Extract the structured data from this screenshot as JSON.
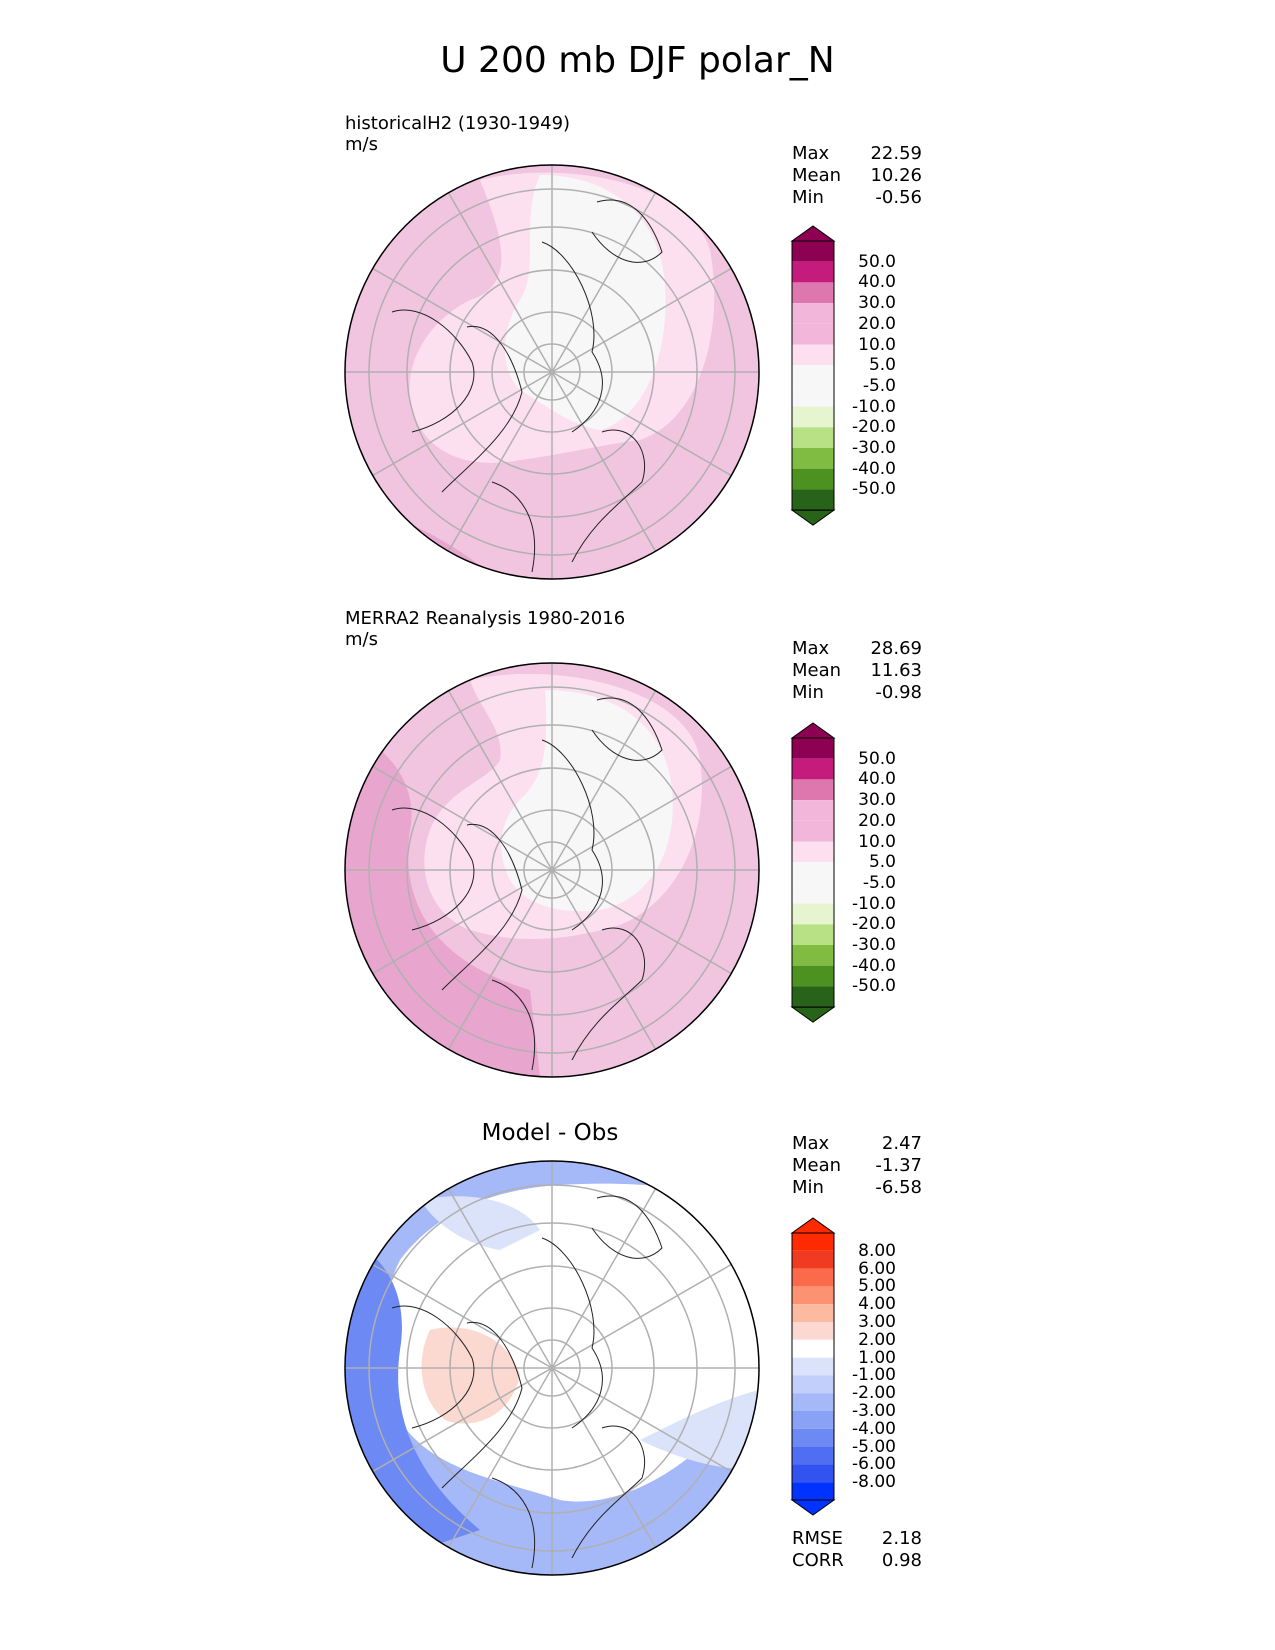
{
  "title": "U 200 mb DJF polar_N",
  "colors": {
    "pink": [
      "#f7f7f7",
      "#fde0ef",
      "#f1b6da",
      "#de77ae",
      "#c51b7d",
      "#8e0152"
    ],
    "green": [
      "#e6f5d0",
      "#b8e186",
      "#7fbc41",
      "#4d9221",
      "#276419"
    ],
    "diff_red": [
      "#fcd9d0",
      "#fcbba1",
      "#fc9272",
      "#fb6a4a",
      "#f03b20",
      "#ff2a00"
    ],
    "diff_blue": [
      "#dbe3fb",
      "#c2cffa",
      "#a5b8f8",
      "#8aa2f6",
      "#6d89f4",
      "#4f6ef2",
      "#3353f1",
      "#0033ff"
    ]
  },
  "panels": [
    {
      "title": "historicalH2 (1930-1949)",
      "units": "m/s",
      "stats": [
        {
          "label": "Max",
          "value": "22.59"
        },
        {
          "label": "Mean",
          "value": "10.26"
        },
        {
          "label": "Min",
          "value": "-0.56"
        }
      ],
      "colorbar_labels": [
        "50.0",
        "40.0",
        "30.0",
        "20.0",
        "10.0",
        "5.0",
        "-5.0",
        "-10.0",
        "-20.0",
        "-30.0",
        "-40.0",
        "-50.0"
      ]
    },
    {
      "title": "MERRA2 Reanalysis 1980-2016",
      "units": "m/s",
      "stats": [
        {
          "label": "Max",
          "value": "28.69"
        },
        {
          "label": "Mean",
          "value": "11.63"
        },
        {
          "label": "Min",
          "value": "-0.98"
        }
      ],
      "colorbar_labels": [
        "50.0",
        "40.0",
        "30.0",
        "20.0",
        "10.0",
        "5.0",
        "-5.0",
        "-10.0",
        "-20.0",
        "-30.0",
        "-40.0",
        "-50.0"
      ]
    },
    {
      "title": "Model - Obs",
      "stats": [
        {
          "label": "Max",
          "value": "2.47"
        },
        {
          "label": "Mean",
          "value": "-1.37"
        },
        {
          "label": "Min",
          "value": "-6.58"
        }
      ],
      "colorbar_labels": [
        "8.00",
        "6.00",
        "5.00",
        "4.00",
        "3.00",
        "2.00",
        "1.00",
        "-1.00",
        "-2.00",
        "-3.00",
        "-4.00",
        "-5.00",
        "-6.00",
        "-8.00"
      ],
      "metrics": [
        {
          "label": "RMSE",
          "value": "2.18"
        },
        {
          "label": "CORR",
          "value": "0.98"
        }
      ]
    }
  ],
  "chart_data": [
    {
      "type": "heatmap",
      "title": "historicalH2 (1930-1949)",
      "units": "m/s",
      "projection": "north polar stereographic",
      "levels": [
        -50,
        -40,
        -30,
        -20,
        -10,
        -5,
        5,
        10,
        20,
        30,
        40,
        50
      ],
      "stats": {
        "max": 22.59,
        "mean": 10.26,
        "min": -0.56
      }
    },
    {
      "type": "heatmap",
      "title": "MERRA2 Reanalysis 1980-2016",
      "units": "m/s",
      "projection": "north polar stereographic",
      "levels": [
        -50,
        -40,
        -30,
        -20,
        -10,
        -5,
        5,
        10,
        20,
        30,
        40,
        50
      ],
      "stats": {
        "max": 28.69,
        "mean": 11.63,
        "min": -0.98
      }
    },
    {
      "type": "heatmap",
      "title": "Model - Obs",
      "projection": "north polar stereographic",
      "levels": [
        -8,
        -6,
        -5,
        -4,
        -3,
        -2,
        -1,
        1,
        2,
        3,
        4,
        5,
        6,
        8
      ],
      "stats": {
        "max": 2.47,
        "mean": -1.37,
        "min": -6.58
      },
      "metrics": {
        "rmse": 2.18,
        "corr": 0.98
      }
    }
  ]
}
